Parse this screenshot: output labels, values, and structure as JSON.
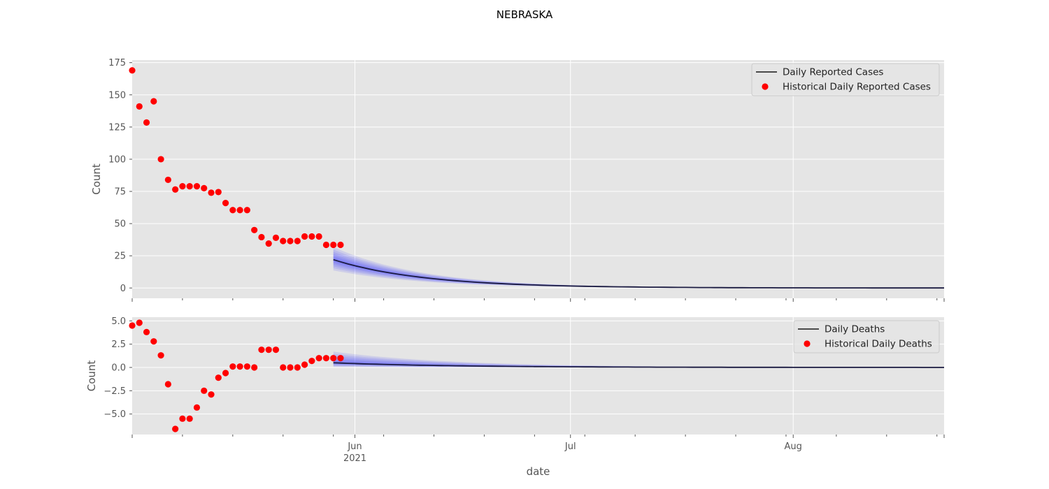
{
  "figure_title": "NEBRASKA",
  "colors": {
    "panel_bg": "#E5E5E5",
    "grid": "#FFFFFF",
    "history": "#FF0000",
    "forecast_line": "#1A1A40",
    "band": "#3333FF",
    "tick_text": "#555555"
  },
  "chart_data": [
    {
      "type": "line",
      "xlabel": "",
      "ylabel": "Count",
      "ylim": [
        -8,
        177
      ],
      "xlim": [
        "2021-05-01",
        "2021-08-22"
      ],
      "x_ticks": [
        {
          "date": "2021-06-01",
          "label": "Jun",
          "sublabel": "2021"
        },
        {
          "date": "2021-07-01",
          "label": "Jul",
          "sublabel": ""
        },
        {
          "date": "2021-08-01",
          "label": "Aug",
          "sublabel": ""
        }
      ],
      "y_ticks": [
        {
          "value": 0,
          "label": "0"
        },
        {
          "value": 25,
          "label": "25"
        },
        {
          "value": 50,
          "label": "50"
        },
        {
          "value": 75,
          "label": "75"
        },
        {
          "value": 100,
          "label": "100"
        },
        {
          "value": 125,
          "label": "125"
        },
        {
          "value": 150,
          "label": "150"
        },
        {
          "value": 175,
          "label": "175"
        }
      ],
      "grid": true,
      "legend_position": "top-right",
      "legend": {
        "line_label": "Daily Reported Cases",
        "scatter_label": "Historical Daily Reported Cases"
      },
      "series": [
        {
          "name": "Historical Daily Reported Cases",
          "kind": "scatter",
          "x": [
            "2021-05-01",
            "2021-05-02",
            "2021-05-03",
            "2021-05-04",
            "2021-05-05",
            "2021-05-06",
            "2021-05-07",
            "2021-05-08",
            "2021-05-09",
            "2021-05-10",
            "2021-05-11",
            "2021-05-12",
            "2021-05-13",
            "2021-05-14",
            "2021-05-15",
            "2021-05-16",
            "2021-05-17",
            "2021-05-18",
            "2021-05-19",
            "2021-05-20",
            "2021-05-21",
            "2021-05-22",
            "2021-05-23",
            "2021-05-24",
            "2021-05-25",
            "2021-05-26",
            "2021-05-27",
            "2021-05-28",
            "2021-05-29",
            "2021-05-30"
          ],
          "y": [
            169,
            141,
            128.5,
            145,
            100,
            84,
            76.5,
            79,
            79,
            79,
            77.5,
            74,
            74.5,
            66,
            60.5,
            60.5,
            60.5,
            45,
            39.5,
            34.5,
            39,
            36.5,
            36.5,
            36.5,
            40,
            40,
            40,
            33.5,
            33.5,
            33.5
          ]
        },
        {
          "name": "Daily Reported Cases",
          "kind": "forecast",
          "start": "2021-05-29",
          "end": "2021-08-22",
          "initial": 22,
          "decay_per_day": 0.08,
          "band_low_ratio": 0.62,
          "band_high_ratio": 1.45
        }
      ]
    },
    {
      "type": "line",
      "xlabel": "date",
      "ylabel": "Count",
      "ylim": [
        -7.2,
        5.4
      ],
      "xlim": [
        "2021-05-01",
        "2021-08-22"
      ],
      "x_ticks": [
        {
          "date": "2021-06-01",
          "label": "Jun",
          "sublabel": "2021"
        },
        {
          "date": "2021-07-01",
          "label": "Jul",
          "sublabel": ""
        },
        {
          "date": "2021-08-01",
          "label": "Aug",
          "sublabel": ""
        }
      ],
      "y_ticks": [
        {
          "value": -5,
          "label": "−5.0"
        },
        {
          "value": -2.5,
          "label": "−2.5"
        },
        {
          "value": 0,
          "label": "0.0"
        },
        {
          "value": 2.5,
          "label": "2.5"
        },
        {
          "value": 5,
          "label": "5.0"
        }
      ],
      "grid": true,
      "legend_position": "top-right",
      "legend": {
        "line_label": "Daily Deaths",
        "scatter_label": "Historical Daily Deaths"
      },
      "series": [
        {
          "name": "Historical Daily Deaths",
          "kind": "scatter",
          "x": [
            "2021-05-01",
            "2021-05-02",
            "2021-05-03",
            "2021-05-04",
            "2021-05-05",
            "2021-05-06",
            "2021-05-07",
            "2021-05-08",
            "2021-05-09",
            "2021-05-10",
            "2021-05-11",
            "2021-05-12",
            "2021-05-13",
            "2021-05-14",
            "2021-05-15",
            "2021-05-16",
            "2021-05-17",
            "2021-05-18",
            "2021-05-19",
            "2021-05-20",
            "2021-05-21",
            "2021-05-22",
            "2021-05-23",
            "2021-05-24",
            "2021-05-25",
            "2021-05-26",
            "2021-05-27",
            "2021-05-28",
            "2021-05-29",
            "2021-05-30"
          ],
          "y": [
            4.5,
            4.8,
            3.8,
            2.8,
            1.3,
            -1.8,
            -6.6,
            -5.5,
            -5.5,
            -4.3,
            -2.5,
            -2.9,
            -1.1,
            -0.6,
            0.1,
            0.1,
            0.1,
            0.0,
            1.9,
            1.9,
            1.9,
            0.0,
            0.0,
            0.0,
            0.3,
            0.7,
            1.0,
            1.0,
            1.0,
            1.0
          ]
        },
        {
          "name": "Daily Deaths",
          "kind": "forecast",
          "start": "2021-05-29",
          "end": "2021-08-22",
          "initial": 0.5,
          "decay_per_day": 0.06,
          "band_low_ratio": 0.1,
          "band_high_ratio": 3.4
        }
      ]
    }
  ]
}
